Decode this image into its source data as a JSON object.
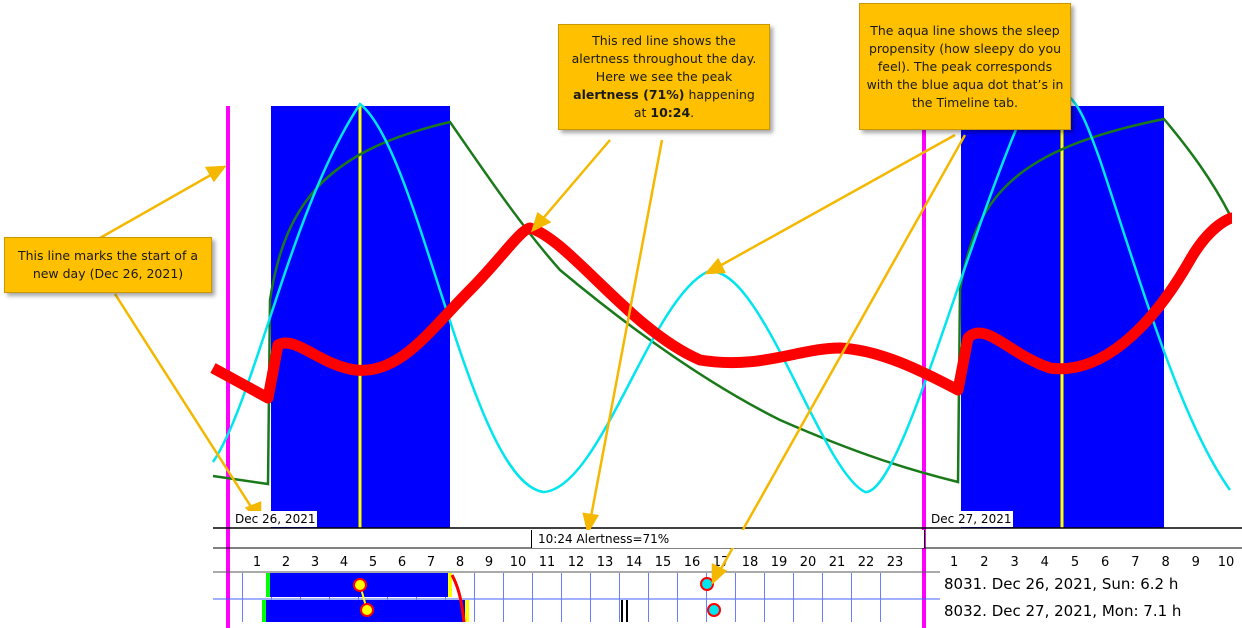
{
  "callouts": {
    "new_day": "This line marks the start of a new day (Dec 26, 2021)",
    "alertness_pre": "This red line shows the alertness throughout the day. Here we see the peak",
    "alertness_bold": "alertness (71%)",
    "alertness_mid": "happening at",
    "alertness_time": "10:24",
    "alertness_end": ".",
    "sleep": "The aqua line shows the sleep propensity (how sleepy do you feel). The peak corresponds with the blue aqua dot that’s in the Timeline tab."
  },
  "dates": {
    "day1": "Dec 26, 2021",
    "day2": "Dec 27, 2021"
  },
  "status": "10:24 Alertness=71%",
  "hours_day1": [
    "1",
    "2",
    "3",
    "4",
    "5",
    "6",
    "7",
    "8",
    "9",
    "10",
    "11",
    "12",
    "13",
    "14",
    "15",
    "16",
    "17",
    "18",
    "19",
    "20",
    "21",
    "22",
    "23"
  ],
  "hours_day2": [
    "1",
    "2",
    "3",
    "4",
    "5",
    "6",
    "7",
    "8",
    "9",
    "10"
  ],
  "timeline_rows": [
    {
      "label": "8031. Dec 26, 2021, Sun: 6.2 h"
    },
    {
      "label": "8032. Dec 27, 2021, Mon: 7.1 h"
    }
  ],
  "colors": {
    "sleep_block": "#0000ff",
    "alertness": "#ff0000",
    "sleep_propensity": "#00e5ee",
    "homeostatic": "#1a7a1a",
    "day_start": "#ff00ff",
    "midpoint": "#ffff00",
    "callout": "#ffc000",
    "arrow": "#f5b800"
  }
}
